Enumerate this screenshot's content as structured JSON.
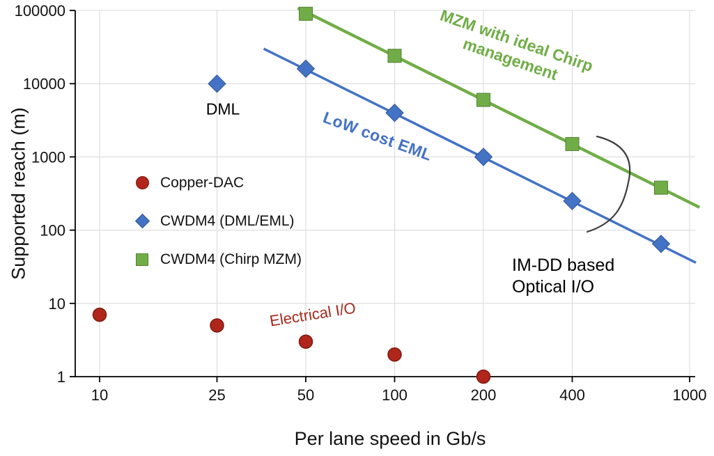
{
  "chart_data": {
    "type": "scatter",
    "xlabel": "Per lane speed in Gb/s",
    "ylabel": "Supported reach (m)",
    "x_scale": "log",
    "y_scale": "log",
    "xlim": [
      10,
      1000
    ],
    "ylim": [
      1,
      100000
    ],
    "x_ticks": [
      10,
      25,
      50,
      100,
      200,
      400,
      1000
    ],
    "y_ticks": [
      1,
      10,
      100,
      1000,
      10000,
      100000
    ],
    "grid": true,
    "series": [
      {
        "name": "Copper-DAC",
        "marker": "circle",
        "color": "#b1261a",
        "edge_color": "#7d1a10",
        "points": [
          [
            10,
            7
          ],
          [
            25,
            5
          ],
          [
            50,
            3
          ],
          [
            100,
            2
          ],
          [
            200,
            1
          ]
        ]
      },
      {
        "name": "CWDM4 (DML/EML)",
        "marker": "diamond",
        "color": "#4472c4",
        "edge_color": "#2f5597",
        "points": [
          [
            25,
            10000
          ],
          [
            50,
            16000
          ],
          [
            100,
            4000
          ],
          [
            200,
            1000
          ],
          [
            400,
            250
          ],
          [
            800,
            65
          ]
        ],
        "trendline": {
          "x": [
            36,
            1050
          ],
          "y": [
            30000,
            36
          ],
          "width": 3.5
        }
      },
      {
        "name": "CWDM4 (Chirp MZM)",
        "marker": "square",
        "color": "#70ad47",
        "edge_color": "#538135",
        "points": [
          [
            50,
            90000
          ],
          [
            100,
            24000
          ],
          [
            200,
            6000
          ],
          [
            400,
            1500
          ],
          [
            800,
            380
          ]
        ],
        "trendline": {
          "x": [
            47,
            1080
          ],
          "y": [
            108000,
            205
          ],
          "width": 4.4
        }
      }
    ],
    "annotations": {
      "dml": {
        "text": "DML",
        "color": "#000000"
      },
      "low_cost_eml": {
        "text": "LoW cost EML",
        "color": "#4472c4"
      },
      "mzm": {
        "text": "MZM with ideal Chirp management",
        "color": "#70ad47"
      },
      "electrical_io": {
        "text": "Electrical I/O",
        "color": "#a5281b"
      },
      "imdd": {
        "text": "IM-DD based Optical I/O",
        "color": "#000000"
      }
    },
    "legend": {
      "position": "center-left",
      "entries": [
        "Copper-DAC",
        "CWDM4 (DML/EML)",
        "CWDM4 (Chirp MZM)"
      ]
    }
  }
}
